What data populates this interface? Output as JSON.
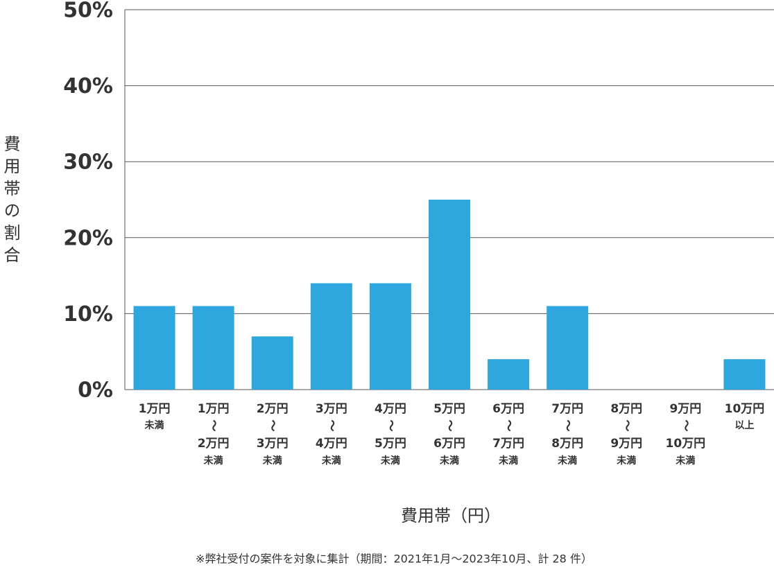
{
  "chart_data": {
    "type": "bar",
    "y_label": "費用帯の割合",
    "x_label": "費用帯（円）",
    "note": "※弊社受付の案件を対象に集計（期間：2021年1月～2023年10月、計 28 件）",
    "categories": [
      [
        "1万円",
        "未満"
      ],
      [
        "1万円",
        "～",
        "2万円",
        "未満"
      ],
      [
        "2万円",
        "～",
        "3万円",
        "未満"
      ],
      [
        "3万円",
        "～",
        "4万円",
        "未満"
      ],
      [
        "4万円",
        "～",
        "5万円",
        "未満"
      ],
      [
        "5万円",
        "～",
        "6万円",
        "未満"
      ],
      [
        "6万円",
        "～",
        "7万円",
        "未満"
      ],
      [
        "7万円",
        "～",
        "8万円",
        "未満"
      ],
      [
        "8万円",
        "～",
        "9万円",
        "未満"
      ],
      [
        "9万円",
        "～",
        "10万円",
        "未満"
      ],
      [
        "10万円",
        "以上"
      ]
    ],
    "values": [
      11,
      11,
      7,
      14,
      14,
      25,
      4,
      11,
      0,
      0,
      4
    ],
    "color": "#2ea6de",
    "ylim": [
      0,
      50
    ],
    "yticks": [
      {
        "value": 0,
        "label": "0%"
      },
      {
        "value": 10,
        "label": "10%"
      },
      {
        "value": 20,
        "label": "20%"
      },
      {
        "value": 30,
        "label": "30%"
      },
      {
        "value": 40,
        "label": "40%"
      },
      {
        "value": 50,
        "label": "50%"
      }
    ],
    "grid": true
  }
}
